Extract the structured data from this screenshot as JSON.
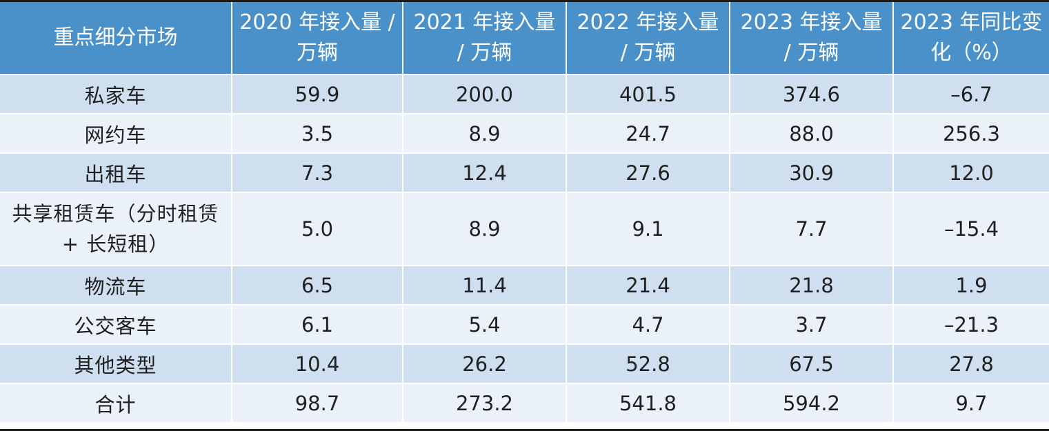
{
  "table": {
    "headers": [
      "重点细分市场",
      "2020 年接入量 / 万辆",
      "2021 年接入量 / 万辆",
      "2022 年接入量 / 万辆",
      "2023 年接入量 / 万辆",
      "2023 年同比变化（%）"
    ],
    "rows": [
      {
        "category": "私家车",
        "y2020": "59.9",
        "y2021": "200.0",
        "y2022": "401.5",
        "y2023": "374.6",
        "yoy": "–6.7"
      },
      {
        "category": "网约车",
        "y2020": "3.5",
        "y2021": "8.9",
        "y2022": "24.7",
        "y2023": "88.0",
        "yoy": "256.3"
      },
      {
        "category": "出租车",
        "y2020": "7.3",
        "y2021": "12.4",
        "y2022": "27.6",
        "y2023": "30.9",
        "yoy": "12.0"
      },
      {
        "category": "共享租赁车（分时租赁 + 长短租）",
        "y2020": "5.0",
        "y2021": "8.9",
        "y2022": "9.1",
        "y2023": "7.7",
        "yoy": "–15.4"
      },
      {
        "category": "物流车",
        "y2020": "6.5",
        "y2021": "11.4",
        "y2022": "21.4",
        "y2023": "21.8",
        "yoy": "1.9"
      },
      {
        "category": "公交客车",
        "y2020": "6.1",
        "y2021": "5.4",
        "y2022": "4.7",
        "y2023": "3.7",
        "yoy": "–21.3"
      },
      {
        "category": "其他类型",
        "y2020": "10.4",
        "y2021": "26.2",
        "y2022": "52.8",
        "y2023": "67.5",
        "yoy": "27.8"
      },
      {
        "category": "合计",
        "y2020": "98.7",
        "y2021": "273.2",
        "y2022": "541.8",
        "y2023": "594.2",
        "yoy": "9.7"
      }
    ]
  }
}
